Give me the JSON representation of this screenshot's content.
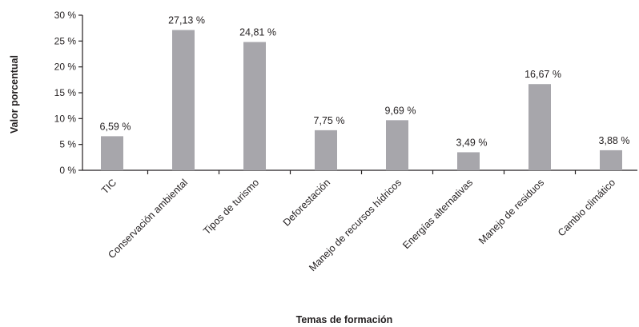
{
  "chart_data": {
    "type": "bar",
    "title": "",
    "xlabel": "Temas de formación",
    "ylabel": "Valor porcentual",
    "ylim": [
      0,
      30
    ],
    "yticks": [
      0,
      5,
      10,
      15,
      20,
      25,
      30
    ],
    "ytick_labels": [
      "0 %",
      "5 %",
      "10 %",
      "15 %",
      "20 %",
      "25 %",
      "30 %"
    ],
    "categories": [
      "TIC",
      "Conservación ambiental",
      "Tipos de turismo",
      "Deforestación",
      "Manejo de recursos hídricos",
      "Energías alternativas",
      "Manejo de residuos",
      "Cambio climático"
    ],
    "values": [
      6.59,
      27.13,
      24.81,
      7.75,
      9.69,
      3.49,
      16.67,
      3.88
    ],
    "value_labels": [
      "6,59 %",
      "27,13 %",
      "24,81 %",
      "7,75 %",
      "9,69 %",
      "3,49 %",
      "16,67 %",
      "3,88 %"
    ],
    "bar_color": "#a7a6ab",
    "axis_color": "#231f20",
    "grid": false,
    "legend": "none"
  }
}
